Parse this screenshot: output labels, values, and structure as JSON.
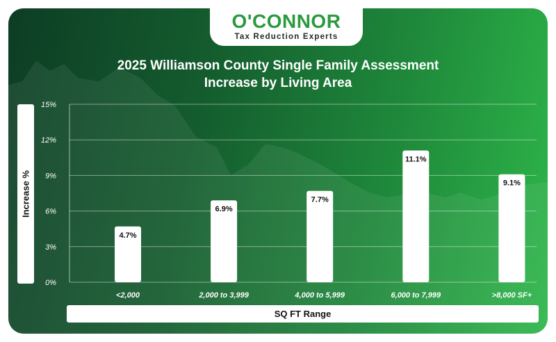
{
  "brand": {
    "name": "O'CONNOR",
    "tagline": "Tax Reduction Experts"
  },
  "chart_data": {
    "type": "bar",
    "title": "2025 Williamson County Single Family Assessment Increase by Living Area",
    "title_lines": [
      "2025 Williamson County Single Family Assessment",
      "Increase by Living Area"
    ],
    "xlabel": "SQ FT Range",
    "ylabel": "Increase %",
    "categories": [
      "<2,000",
      "2,000 to 3,999",
      "4,000 to 5,999",
      "6,000 to 7,999",
      ">8,000 SF+"
    ],
    "values": [
      4.7,
      6.9,
      7.7,
      11.1,
      9.1
    ],
    "data_labels": [
      "4.7%",
      "6.9%",
      "7.7%",
      "11.1%",
      "9.1%"
    ],
    "yticks": [
      0,
      3,
      6,
      9,
      12,
      15
    ],
    "ytick_labels": [
      "0%",
      "3%",
      "6%",
      "9%",
      "12%",
      "15%"
    ],
    "ylim": [
      0,
      15
    ],
    "grid": true,
    "colors": {
      "bar": "#ffffff",
      "grid": "#ffffff"
    }
  }
}
